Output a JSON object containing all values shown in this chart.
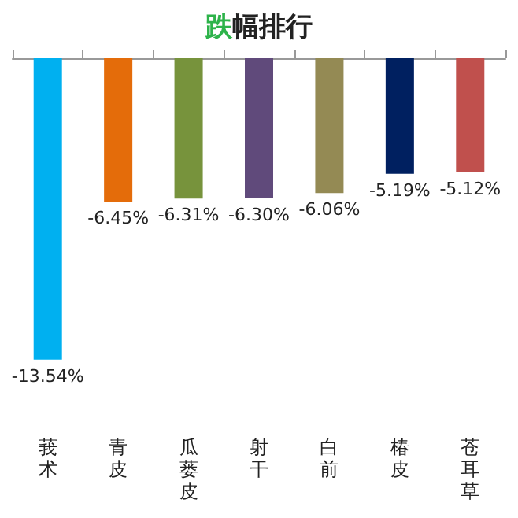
{
  "chart_data": {
    "type": "bar",
    "title": "跌幅排行",
    "categories": [
      "莪术",
      "青皮",
      "瓜蒌皮",
      "射干",
      "白前",
      "椿皮",
      "苍耳草"
    ],
    "values": [
      -13.54,
      -6.45,
      -6.31,
      -6.3,
      -6.06,
      -5.19,
      -5.12
    ],
    "colors": [
      "#00b0f0",
      "#e46c0a",
      "#77933c",
      "#604a7b",
      "#948a54",
      "#002060",
      "#c0504d"
    ],
    "value_labels": [
      "-13.54%",
      "-6.45%",
      "-6.31%",
      "-6.30%",
      "-6.06%",
      "-5.19%",
      "-5.12%"
    ]
  }
}
